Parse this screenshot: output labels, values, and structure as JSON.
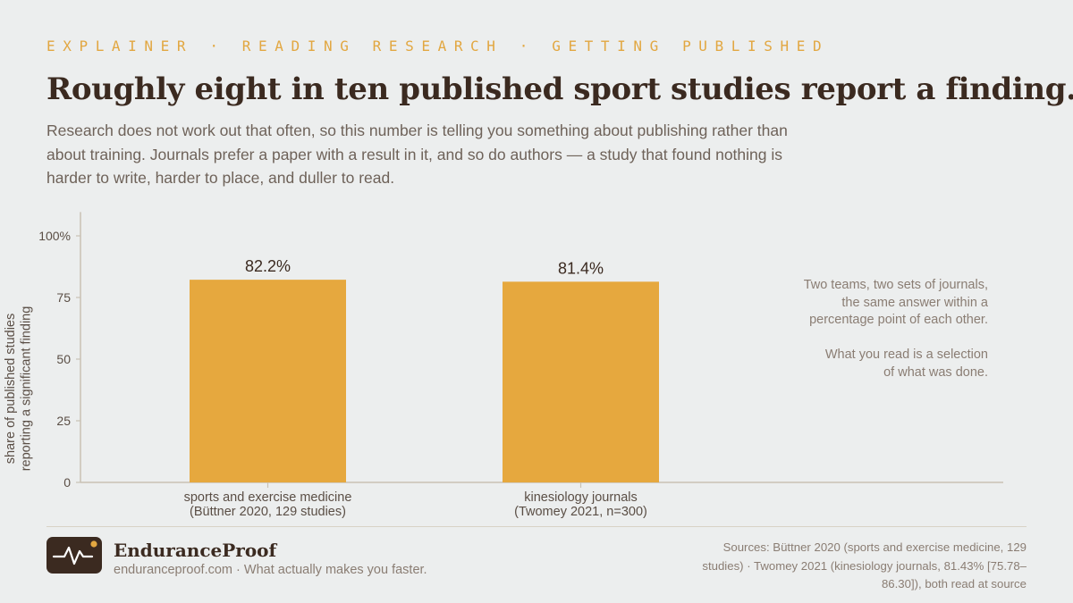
{
  "kicker": "EXPLAINER · READING RESEARCH · GETTING PUBLISHED",
  "headline": "Roughly eight in ten published sport studies report a finding.",
  "lede": "Research does not work out that often, so this number is telling you something about publishing rather than about training. Journals prefer a paper with a result in it, and so do authors — a study that found nothing is harder to write, harder to place, and duller to read.",
  "chart_data": {
    "type": "bar",
    "categories": [
      [
        "sports and exercise medicine",
        "(Büttner 2020, 129 studies)"
      ],
      [
        "kinesiology journals",
        "(Twomey 2021, n=300)"
      ]
    ],
    "values": [
      82.2,
      81.4
    ],
    "value_labels": [
      "82.2%",
      "81.4%"
    ],
    "ylabel": [
      "share of published studies",
      "reporting a significant finding"
    ],
    "ylim": [
      0,
      110
    ],
    "yticks": [
      0,
      25,
      50,
      75,
      100
    ],
    "ytick_labels": [
      "0",
      "25",
      "50",
      "75",
      "100%"
    ],
    "grid": false,
    "bar_color": "#e6a83e"
  },
  "notes": {
    "line1": "Two teams, two sets of journals,",
    "line2": "the same answer within a",
    "line3": "percentage point of each other.",
    "line4": "What you read is a selection",
    "line5": "of what was done."
  },
  "footer": {
    "brand": "EnduranceProof",
    "tagline": "enduranceproof.com · What actually makes you faster.",
    "sources": "Sources: Büttner 2020 (sports and exercise medicine, 129 studies) · Twomey 2021 (kinesiology journals, 81.43% [75.78–86.30]), both read at source",
    "logo_icon": "heartbeat-line-icon"
  },
  "colors": {
    "accent": "#e2a741",
    "ink": "#3b2a20",
    "muted": "#8a7d73",
    "background": "#eceeee"
  }
}
